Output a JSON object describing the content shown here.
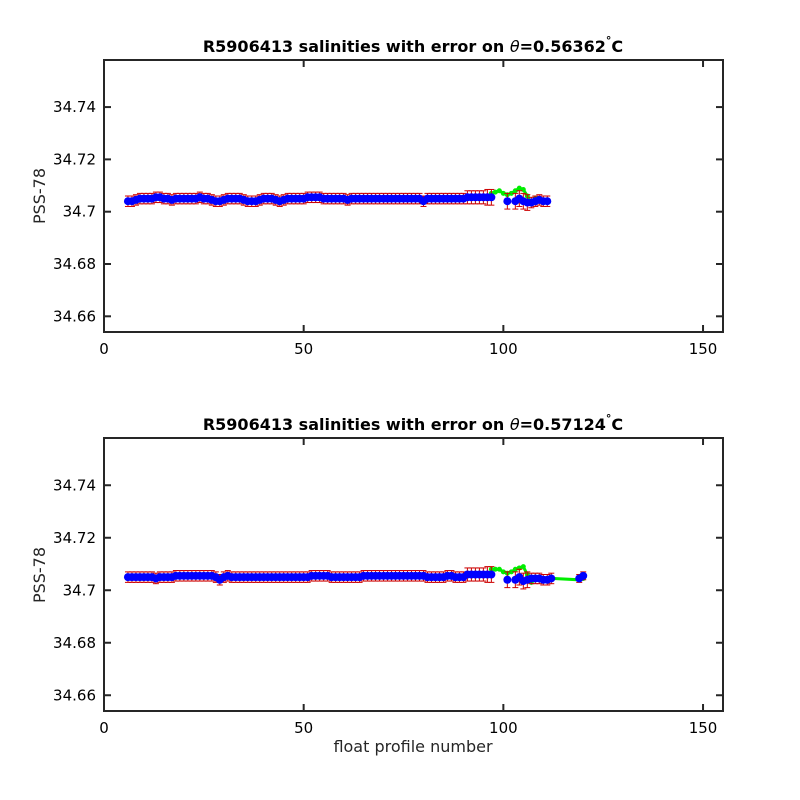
{
  "chart_data": [
    {
      "type": "scatter",
      "title_prefix": "R5906413 salinities with error on ",
      "title_symbol": "θ",
      "title_value": "=0.56362",
      "title_degree": "°",
      "title_unit": "C",
      "xlabel": "",
      "ylabel": "PSS-78",
      "xlim": [
        0,
        155
      ],
      "ylim": [
        34.654,
        34.758
      ],
      "xticks": [
        0,
        50,
        100,
        150
      ],
      "yticks": [
        34.66,
        34.68,
        34.7,
        34.72,
        34.74
      ],
      "ytick_labels": [
        "34.66",
        "34.68",
        "34.7",
        "34.72",
        "34.74"
      ],
      "colors": {
        "points": "#0000ff",
        "errorbars": "#cc0000",
        "highlight": "#00ee00"
      },
      "series": [
        {
          "x": [
            6,
            7,
            8,
            9,
            10,
            11,
            12,
            13,
            14,
            15,
            16,
            17,
            18,
            19,
            20,
            21,
            22,
            23,
            24,
            25,
            26,
            27,
            28,
            29,
            30,
            31,
            32,
            33,
            34,
            35,
            36,
            37,
            38,
            39,
            40,
            41,
            42,
            43,
            44,
            45,
            46,
            47,
            48,
            49,
            50,
            51,
            52,
            53,
            54,
            55,
            56,
            57,
            58,
            59,
            60,
            61,
            62,
            63,
            64,
            65,
            66,
            67,
            68,
            69,
            70,
            71,
            72,
            73,
            74,
            75,
            76,
            77,
            78,
            79,
            80,
            81,
            82,
            83,
            84,
            85,
            86,
            87,
            88,
            89,
            90,
            91,
            92,
            93,
            94,
            95,
            96,
            97,
            101,
            103,
            104,
            105,
            106,
            107,
            108,
            109,
            110,
            111
          ],
          "y": [
            34.704,
            34.704,
            34.7045,
            34.705,
            34.705,
            34.705,
            34.705,
            34.7055,
            34.7055,
            34.705,
            34.705,
            34.7045,
            34.705,
            34.705,
            34.705,
            34.705,
            34.705,
            34.705,
            34.7055,
            34.705,
            34.705,
            34.7045,
            34.704,
            34.704,
            34.7045,
            34.705,
            34.705,
            34.705,
            34.705,
            34.7045,
            34.704,
            34.704,
            34.704,
            34.7045,
            34.705,
            34.705,
            34.705,
            34.7045,
            34.704,
            34.7045,
            34.705,
            34.705,
            34.705,
            34.705,
            34.705,
            34.7055,
            34.7055,
            34.7055,
            34.7055,
            34.705,
            34.705,
            34.705,
            34.705,
            34.705,
            34.705,
            34.7045,
            34.705,
            34.705,
            34.705,
            34.705,
            34.705,
            34.705,
            34.705,
            34.705,
            34.705,
            34.705,
            34.705,
            34.705,
            34.705,
            34.705,
            34.705,
            34.705,
            34.705,
            34.705,
            34.704,
            34.705,
            34.705,
            34.705,
            34.705,
            34.705,
            34.705,
            34.705,
            34.705,
            34.705,
            34.705,
            34.7055,
            34.7055,
            34.7055,
            34.7055,
            34.7055,
            34.7055,
            34.7055,
            34.704,
            34.704,
            34.705,
            34.704,
            34.7035,
            34.7035,
            34.704,
            34.7045,
            34.704,
            34.704
          ],
          "err": [
            0.002,
            0.002,
            0.002,
            0.002,
            0.002,
            0.002,
            0.002,
            0.002,
            0.002,
            0.002,
            0.002,
            0.002,
            0.002,
            0.002,
            0.002,
            0.002,
            0.002,
            0.002,
            0.002,
            0.002,
            0.002,
            0.002,
            0.002,
            0.002,
            0.002,
            0.002,
            0.002,
            0.002,
            0.002,
            0.002,
            0.002,
            0.002,
            0.002,
            0.002,
            0.002,
            0.002,
            0.002,
            0.002,
            0.002,
            0.002,
            0.002,
            0.002,
            0.002,
            0.002,
            0.002,
            0.002,
            0.002,
            0.002,
            0.002,
            0.002,
            0.002,
            0.002,
            0.002,
            0.002,
            0.002,
            0.002,
            0.002,
            0.002,
            0.002,
            0.002,
            0.002,
            0.002,
            0.002,
            0.002,
            0.002,
            0.002,
            0.002,
            0.002,
            0.002,
            0.002,
            0.002,
            0.002,
            0.002,
            0.002,
            0.002,
            0.002,
            0.002,
            0.002,
            0.002,
            0.002,
            0.002,
            0.002,
            0.002,
            0.002,
            0.002,
            0.0025,
            0.0025,
            0.0025,
            0.0025,
            0.0025,
            0.003,
            0.003,
            0.003,
            0.003,
            0.003,
            0.003,
            0.003,
            0.002,
            0.002,
            0.002,
            0.002,
            0.002
          ]
        }
      ],
      "highlight": {
        "x": [
          97,
          98,
          99,
          100,
          101,
          102,
          103,
          104,
          105,
          106,
          107,
          108,
          109,
          110,
          111
        ],
        "y": [
          34.707,
          34.7075,
          34.708,
          34.707,
          34.7065,
          34.707,
          34.708,
          34.709,
          34.7085,
          34.706,
          34.703,
          34.705,
          34.705,
          34.7045,
          34.704
        ]
      }
    },
    {
      "type": "scatter",
      "title_prefix": "R5906413 salinities with error on ",
      "title_symbol": "θ",
      "title_value": "=0.57124",
      "title_degree": "°",
      "title_unit": "C",
      "xlabel": "float profile number",
      "ylabel": "PSS-78",
      "xlim": [
        0,
        155
      ],
      "ylim": [
        34.654,
        34.758
      ],
      "xticks": [
        0,
        50,
        100,
        150
      ],
      "yticks": [
        34.66,
        34.68,
        34.7,
        34.72,
        34.74
      ],
      "ytick_labels": [
        "34.66",
        "34.68",
        "34.7",
        "34.72",
        "34.74"
      ],
      "colors": {
        "points": "#0000ff",
        "errorbars": "#cc0000",
        "highlight": "#00ee00"
      },
      "series": [
        {
          "x": [
            6,
            7,
            8,
            9,
            10,
            11,
            12,
            13,
            14,
            15,
            16,
            17,
            18,
            19,
            20,
            21,
            22,
            23,
            24,
            25,
            26,
            27,
            28,
            29,
            30,
            31,
            32,
            33,
            34,
            35,
            36,
            37,
            38,
            39,
            40,
            41,
            42,
            43,
            44,
            45,
            46,
            47,
            48,
            49,
            50,
            51,
            52,
            53,
            54,
            55,
            56,
            57,
            58,
            59,
            60,
            61,
            62,
            63,
            64,
            65,
            66,
            67,
            68,
            69,
            70,
            71,
            72,
            73,
            74,
            75,
            76,
            77,
            78,
            79,
            80,
            81,
            82,
            83,
            84,
            85,
            86,
            87,
            88,
            89,
            90,
            91,
            92,
            93,
            94,
            95,
            96,
            97,
            101,
            103,
            104,
            105,
            106,
            107,
            108,
            109,
            110,
            111,
            112,
            119,
            120
          ],
          "y": [
            34.705,
            34.705,
            34.705,
            34.705,
            34.705,
            34.705,
            34.705,
            34.7045,
            34.705,
            34.705,
            34.705,
            34.705,
            34.7055,
            34.7055,
            34.7055,
            34.7055,
            34.7055,
            34.7055,
            34.7055,
            34.7055,
            34.7055,
            34.7055,
            34.705,
            34.704,
            34.705,
            34.7055,
            34.705,
            34.705,
            34.705,
            34.705,
            34.705,
            34.705,
            34.705,
            34.705,
            34.705,
            34.705,
            34.705,
            34.705,
            34.705,
            34.705,
            34.705,
            34.705,
            34.705,
            34.705,
            34.705,
            34.705,
            34.7055,
            34.7055,
            34.7055,
            34.7055,
            34.7055,
            34.705,
            34.705,
            34.705,
            34.705,
            34.705,
            34.705,
            34.705,
            34.705,
            34.7055,
            34.7055,
            34.7055,
            34.7055,
            34.7055,
            34.7055,
            34.7055,
            34.7055,
            34.7055,
            34.7055,
            34.7055,
            34.7055,
            34.7055,
            34.7055,
            34.7055,
            34.7055,
            34.705,
            34.705,
            34.705,
            34.705,
            34.705,
            34.7055,
            34.7055,
            34.705,
            34.705,
            34.705,
            34.706,
            34.706,
            34.706,
            34.706,
            34.706,
            34.706,
            34.706,
            34.704,
            34.704,
            34.705,
            34.7035,
            34.704,
            34.7045,
            34.7045,
            34.7045,
            34.704,
            34.704,
            34.7045,
            34.7045,
            34.7055
          ],
          "err": [
            0.002,
            0.002,
            0.002,
            0.002,
            0.002,
            0.002,
            0.002,
            0.002,
            0.002,
            0.002,
            0.002,
            0.002,
            0.002,
            0.002,
            0.002,
            0.002,
            0.002,
            0.002,
            0.002,
            0.002,
            0.002,
            0.002,
            0.002,
            0.002,
            0.002,
            0.002,
            0.002,
            0.002,
            0.002,
            0.002,
            0.002,
            0.002,
            0.002,
            0.002,
            0.002,
            0.002,
            0.002,
            0.002,
            0.002,
            0.002,
            0.002,
            0.002,
            0.002,
            0.002,
            0.002,
            0.002,
            0.002,
            0.002,
            0.002,
            0.002,
            0.002,
            0.002,
            0.002,
            0.002,
            0.002,
            0.002,
            0.002,
            0.002,
            0.002,
            0.002,
            0.002,
            0.002,
            0.002,
            0.002,
            0.002,
            0.002,
            0.002,
            0.002,
            0.002,
            0.002,
            0.002,
            0.002,
            0.002,
            0.002,
            0.002,
            0.002,
            0.002,
            0.002,
            0.002,
            0.002,
            0.002,
            0.002,
            0.002,
            0.002,
            0.002,
            0.0025,
            0.0025,
            0.0025,
            0.0025,
            0.0025,
            0.003,
            0.003,
            0.003,
            0.003,
            0.003,
            0.003,
            0.003,
            0.002,
            0.002,
            0.002,
            0.002,
            0.002,
            0.002,
            0.0015,
            0.0015
          ]
        }
      ],
      "highlight": {
        "x": [
          97,
          98,
          99,
          100,
          101,
          102,
          103,
          104,
          105,
          106,
          107,
          108,
          109,
          110,
          111,
          112,
          119,
          120
        ],
        "y": [
          34.708,
          34.708,
          34.708,
          34.707,
          34.7065,
          34.707,
          34.708,
          34.7085,
          34.709,
          34.706,
          34.703,
          34.705,
          34.705,
          34.7045,
          34.7045,
          34.7045,
          34.704,
          34.7045
        ]
      }
    }
  ]
}
